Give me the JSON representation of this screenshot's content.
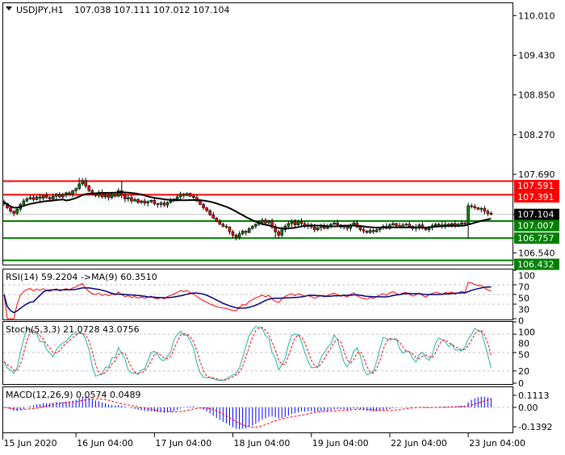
{
  "header": {
    "symbol": "USDJPY,H1",
    "ohlc": "107.038 107.111 107.012 107.104",
    "menu_icon": "triangle-down-icon"
  },
  "colors": {
    "bull": "#008000",
    "bear": "#ff0000",
    "resistance": "#ff0000",
    "support": "#008000",
    "ma_line": "#000000",
    "rsi": "#ff0000",
    "rsi_ma": "#000080",
    "stoch_main": "#20b2aa",
    "stoch_signal": "#ff0000",
    "macd_hist": "#0000ff",
    "macd_signal": "#ff0000"
  },
  "price_axis": {
    "ticks": [
      "110.010",
      "109.430",
      "108.850",
      "108.270",
      "107.690",
      "106.540"
    ],
    "tick_values": [
      110.01,
      109.43,
      108.85,
      108.27,
      107.69,
      106.54
    ],
    "range": [
      106.37,
      110.19
    ]
  },
  "levels": [
    {
      "label": "107.591",
      "value": 107.591,
      "type": "resistance"
    },
    {
      "label": "107.391",
      "value": 107.391,
      "type": "resistance"
    },
    {
      "label": "107.007",
      "value": 107.007,
      "type": "support"
    },
    {
      "label": "106.757",
      "value": 106.757,
      "type": "support"
    },
    {
      "label": "106.432",
      "value": 106.432,
      "type": "support"
    }
  ],
  "current_price": {
    "label": "107.104",
    "value": 107.104
  },
  "chart_data": {
    "type": "candlestick",
    "closes": [
      107.26,
      107.2,
      107.15,
      107.12,
      107.18,
      107.25,
      107.3,
      107.33,
      107.35,
      107.32,
      107.36,
      107.34,
      107.38,
      107.35,
      107.33,
      107.37,
      107.4,
      107.36,
      107.39,
      107.42,
      107.4,
      107.45,
      107.48,
      107.55,
      107.6,
      107.52,
      107.45,
      107.4,
      107.38,
      107.42,
      107.36,
      107.39,
      107.35,
      107.4,
      107.37,
      107.45,
      107.38,
      107.33,
      107.35,
      107.3,
      107.32,
      107.28,
      107.3,
      107.27,
      107.29,
      107.31,
      107.26,
      107.25,
      107.27,
      107.24,
      107.28,
      107.3,
      107.33,
      107.36,
      107.4,
      107.38,
      107.41,
      107.37,
      107.35,
      107.3,
      107.25,
      107.2,
      107.16,
      107.1,
      107.05,
      107.0,
      106.96,
      106.93,
      106.92,
      106.85,
      106.8,
      106.77,
      106.82,
      106.86,
      106.84,
      106.9,
      106.93,
      106.96,
      106.99,
      107.02,
      106.98,
      107.01,
      106.92,
      106.85,
      106.8,
      106.88,
      106.93,
      106.97,
      107.0,
      106.95,
      107.0,
      106.97,
      106.93,
      106.95,
      106.92,
      106.88,
      106.91,
      106.94,
      106.9,
      106.93,
      106.96,
      106.98,
      106.95,
      106.92,
      106.93,
      106.9,
      106.95,
      106.98,
      106.92,
      106.88,
      106.86,
      106.84,
      106.87,
      106.85,
      106.88,
      106.91,
      106.93,
      106.9,
      106.95,
      106.97,
      106.94,
      106.92,
      106.95,
      106.96,
      106.93,
      106.9,
      106.92,
      106.95,
      106.91,
      106.88,
      106.92,
      106.94,
      106.96,
      106.95,
      106.93,
      106.96,
      106.95,
      106.97,
      106.94,
      106.96,
      106.98,
      106.97,
      107.23,
      107.22,
      107.2,
      107.18,
      107.19,
      107.15,
      107.12,
      107.104
    ],
    "time_labels": [
      "15 Jun 2020",
      "16 Jun 04:00",
      "17 Jun 04:00",
      "18 Jun 04:00",
      "19 Jun 04:00",
      "22 Jun 04:00",
      "23 Jun 04:00"
    ]
  },
  "rsi_panel": {
    "title": "RSI(14) 59.2204  ->MA(9) 60.3510",
    "ticks": [
      "100",
      "70",
      "50",
      "30",
      "0"
    ],
    "tick_values": [
      100,
      70,
      50,
      30,
      0
    ]
  },
  "stoch_panel": {
    "title": "Stoch(5,3,3) 21.0728 43.0756",
    "ticks": [
      "100",
      "80",
      "50",
      "20",
      "0"
    ],
    "tick_values": [
      100,
      80,
      50,
      20,
      0
    ]
  },
  "macd_panel": {
    "title": "MACD(12,26,9) 0.0574 0.0489",
    "ticks": [
      "0.1113",
      "0.00",
      "-0.1392"
    ],
    "tick_values": [
      0.1113,
      0,
      -0.1392
    ]
  }
}
